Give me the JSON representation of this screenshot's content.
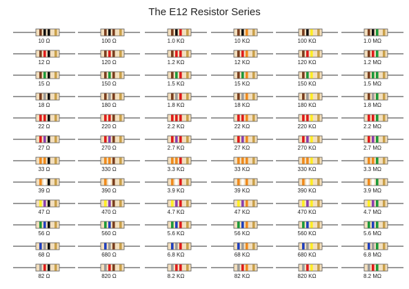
{
  "title": "The E12 Resistor Series",
  "colors": {
    "body": "#f3dfbe",
    "outline": "#555555",
    "lead": "#333333",
    "black": "#111111",
    "brown": "#7a3e1f",
    "red": "#e01b1b",
    "orange": "#f08a1c",
    "yellow": "#ffee22",
    "green": "#1b9a3a",
    "blue": "#1f3fbf",
    "violet": "#8a3fb0",
    "grey": "#9a9a9a",
    "white": "#ffffff",
    "gold": "#c9a04a"
  },
  "rows": [
    {
      "bands": [
        "brown",
        "black"
      ],
      "labels": [
        "10 Ω",
        "100 Ω",
        "1.0 KΩ",
        "10 KΩ",
        "100 KΩ",
        "1.0 MΩ"
      ]
    },
    {
      "bands": [
        "brown",
        "red"
      ],
      "labels": [
        "12 Ω",
        "120 Ω",
        "1.2 KΩ",
        "12 KΩ",
        "120 KΩ",
        "1.2 MΩ"
      ]
    },
    {
      "bands": [
        "brown",
        "green"
      ],
      "labels": [
        "15 Ω",
        "150 Ω",
        "1.5 KΩ",
        "15 KΩ",
        "150 KΩ",
        "1.5 MΩ"
      ]
    },
    {
      "bands": [
        "brown",
        "grey"
      ],
      "labels": [
        "18 Ω",
        "180 Ω",
        "1.8 KΩ",
        "18 KΩ",
        "180 KΩ",
        "1.8 MΩ"
      ]
    },
    {
      "bands": [
        "red",
        "red"
      ],
      "labels": [
        "22 Ω",
        "220 Ω",
        "2.2 KΩ",
        "22 KΩ",
        "220 KΩ",
        "2.2 MΩ"
      ]
    },
    {
      "bands": [
        "red",
        "violet"
      ],
      "labels": [
        "27 Ω",
        "270 Ω",
        "2.7 KΩ",
        "27 KΩ",
        "270 KΩ",
        "2.7 MΩ"
      ]
    },
    {
      "bands": [
        "orange",
        "orange"
      ],
      "labels": [
        "33 Ω",
        "330 Ω",
        "3.3 KΩ",
        "33 KΩ",
        "330 KΩ",
        "3.3 MΩ"
      ]
    },
    {
      "bands": [
        "orange",
        "white"
      ],
      "labels": [
        "39 Ω",
        "390 Ω",
        "3.9 KΩ",
        "39 KΩ",
        "390 KΩ",
        "3.9 MΩ"
      ]
    },
    {
      "bands": [
        "yellow",
        "violet"
      ],
      "labels": [
        "47 Ω",
        "470 Ω",
        "4.7 KΩ",
        "47 KΩ",
        "470 KΩ",
        "4.7 MΩ"
      ]
    },
    {
      "bands": [
        "green",
        "blue"
      ],
      "labels": [
        "56 Ω",
        "560 Ω",
        "5.6 KΩ",
        "56 KΩ",
        "560 KΩ",
        "5.6 MΩ"
      ]
    },
    {
      "bands": [
        "blue",
        "grey"
      ],
      "labels": [
        "68 Ω",
        "680 Ω",
        "6.8 KΩ",
        "68 KΩ",
        "680 KΩ",
        "6.8 MΩ"
      ]
    },
    {
      "bands": [
        "grey",
        "red"
      ],
      "labels": [
        "82 Ω",
        "820 Ω",
        "8.2 KΩ",
        "82 KΩ",
        "820 KΩ",
        "8.2 MΩ"
      ]
    }
  ],
  "multipliers": [
    "black",
    "brown",
    "red",
    "orange",
    "yellow",
    "green"
  ],
  "tolerance": "gold"
}
